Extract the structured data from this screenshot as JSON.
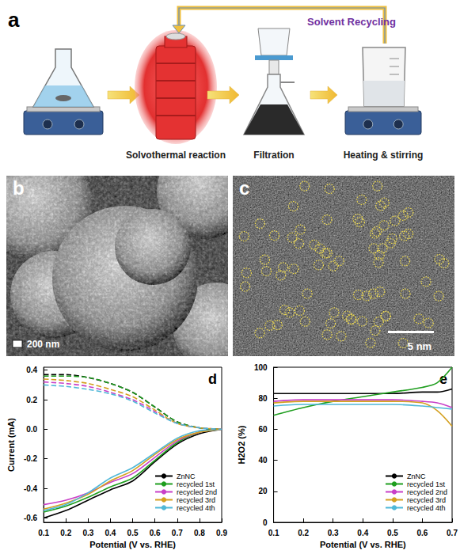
{
  "panels": {
    "a": {
      "label": "a",
      "steps": [
        "Solvothermal reaction",
        "Filtration",
        "Heating & stirring"
      ],
      "loop": "Solvent Recycling"
    },
    "b": {
      "label": "b",
      "scale_bar": "200 nm"
    },
    "c": {
      "label": "c",
      "scale_bar": "5 nm"
    }
  },
  "chart_data": [
    {
      "type": "line",
      "panel_label": "d",
      "x_label": "Potential (V vs. RHE)",
      "y_label": "Current (mA)",
      "x": [
        0.1,
        0.2,
        0.3,
        0.4,
        0.5,
        0.6,
        0.7,
        0.8,
        0.9
      ],
      "xlim": [
        0.1,
        0.9
      ],
      "xticks": [
        0.1,
        0.2,
        0.3,
        0.4,
        0.5,
        0.6,
        0.7,
        0.8,
        0.9
      ],
      "ylim": [
        -0.63,
        0.42
      ],
      "yticks": [
        -0.6,
        -0.4,
        -0.2,
        {
          "value": 0,
          "label": "0.0"
        },
        0.2,
        0.4
      ],
      "grid": false,
      "legend": "lower right",
      "series": [
        {
          "name": "ZnNC",
          "color": "#000000",
          "line_style": "solid",
          "values": [
            -0.6,
            -0.55,
            -0.48,
            -0.41,
            -0.35,
            -0.22,
            -0.1,
            -0.03,
            0.0
          ]
        },
        {
          "name": "recycled 1st",
          "color": "#1f9e1f",
          "line_style": "solid",
          "values": [
            -0.56,
            -0.52,
            -0.46,
            -0.39,
            -0.33,
            -0.21,
            -0.09,
            -0.02,
            0.0
          ]
        },
        {
          "name": "recycled 2nd",
          "color": "#c840c8",
          "line_style": "solid",
          "values": [
            -0.51,
            -0.48,
            -0.43,
            -0.36,
            -0.3,
            -0.19,
            -0.08,
            -0.02,
            0.0
          ]
        },
        {
          "name": "recycled 3rd",
          "color": "#d4a020",
          "line_style": "solid",
          "values": [
            -0.54,
            -0.5,
            -0.44,
            -0.35,
            -0.28,
            -0.17,
            -0.07,
            -0.02,
            0.0
          ]
        },
        {
          "name": "recycled 4th",
          "color": "#4fb8d8",
          "line_style": "solid",
          "values": [
            -0.55,
            -0.51,
            -0.43,
            -0.33,
            -0.26,
            -0.16,
            -0.06,
            -0.01,
            0.0
          ]
        },
        {
          "name": "ZnNC",
          "color": "#000000",
          "line_style": "dashed",
          "values": [
            0.37,
            0.37,
            0.35,
            0.31,
            0.25,
            0.15,
            0.05,
            0.01,
            0.0
          ]
        },
        {
          "name": "recycled 1st",
          "color": "#1f9e1f",
          "line_style": "dashed",
          "values": [
            0.36,
            0.36,
            0.35,
            0.31,
            0.25,
            0.15,
            0.05,
            0.01,
            0.0
          ]
        },
        {
          "name": "recycled 2nd",
          "color": "#c840c8",
          "line_style": "dashed",
          "values": [
            0.32,
            0.31,
            0.29,
            0.25,
            0.2,
            0.12,
            0.04,
            0.01,
            0.0
          ]
        },
        {
          "name": "recycled 3rd",
          "color": "#d4a020",
          "line_style": "dashed",
          "values": [
            0.34,
            0.33,
            0.31,
            0.27,
            0.22,
            0.13,
            0.04,
            0.01,
            0.0
          ]
        },
        {
          "name": "recycled 4th",
          "color": "#4fb8d8",
          "line_style": "dashed",
          "values": [
            0.3,
            0.29,
            0.27,
            0.24,
            0.19,
            0.11,
            0.04,
            0.01,
            0.0
          ]
        }
      ]
    },
    {
      "type": "line",
      "panel_label": "e",
      "x_label": "Potential (V vs. RHE)",
      "y_label": "H2O2 (%)",
      "x": [
        0.1,
        0.2,
        0.3,
        0.4,
        0.5,
        0.6,
        0.65,
        0.7
      ],
      "xlim": [
        0.1,
        0.7
      ],
      "xticks": [
        0.1,
        0.2,
        0.3,
        0.4,
        0.5,
        0.6,
        0.7
      ],
      "ylim": [
        0,
        100
      ],
      "yticks": [
        0,
        20,
        40,
        60,
        80,
        100
      ],
      "grid": false,
      "legend": "lower right",
      "series": [
        {
          "name": "ZnNC",
          "color": "#000000",
          "line_style": "solid",
          "values": [
            83,
            83,
            83,
            83,
            83,
            84,
            84,
            86
          ]
        },
        {
          "name": "recycled 1st",
          "color": "#1f9e1f",
          "line_style": "solid",
          "values": [
            69,
            74,
            78,
            81,
            84,
            87,
            90,
            100
          ]
        },
        {
          "name": "recycled 2nd",
          "color": "#c840c8",
          "line_style": "solid",
          "values": [
            78,
            79,
            79,
            79,
            79,
            78,
            77,
            74
          ]
        },
        {
          "name": "recycled 3rd",
          "color": "#d4a020",
          "line_style": "solid",
          "values": [
            77,
            78,
            78,
            78,
            78,
            77,
            72,
            62
          ]
        },
        {
          "name": "recycled 4th",
          "color": "#4fb8d8",
          "line_style": "solid",
          "values": [
            75,
            76,
            76,
            76,
            76,
            75,
            74,
            73
          ]
        }
      ]
    }
  ]
}
